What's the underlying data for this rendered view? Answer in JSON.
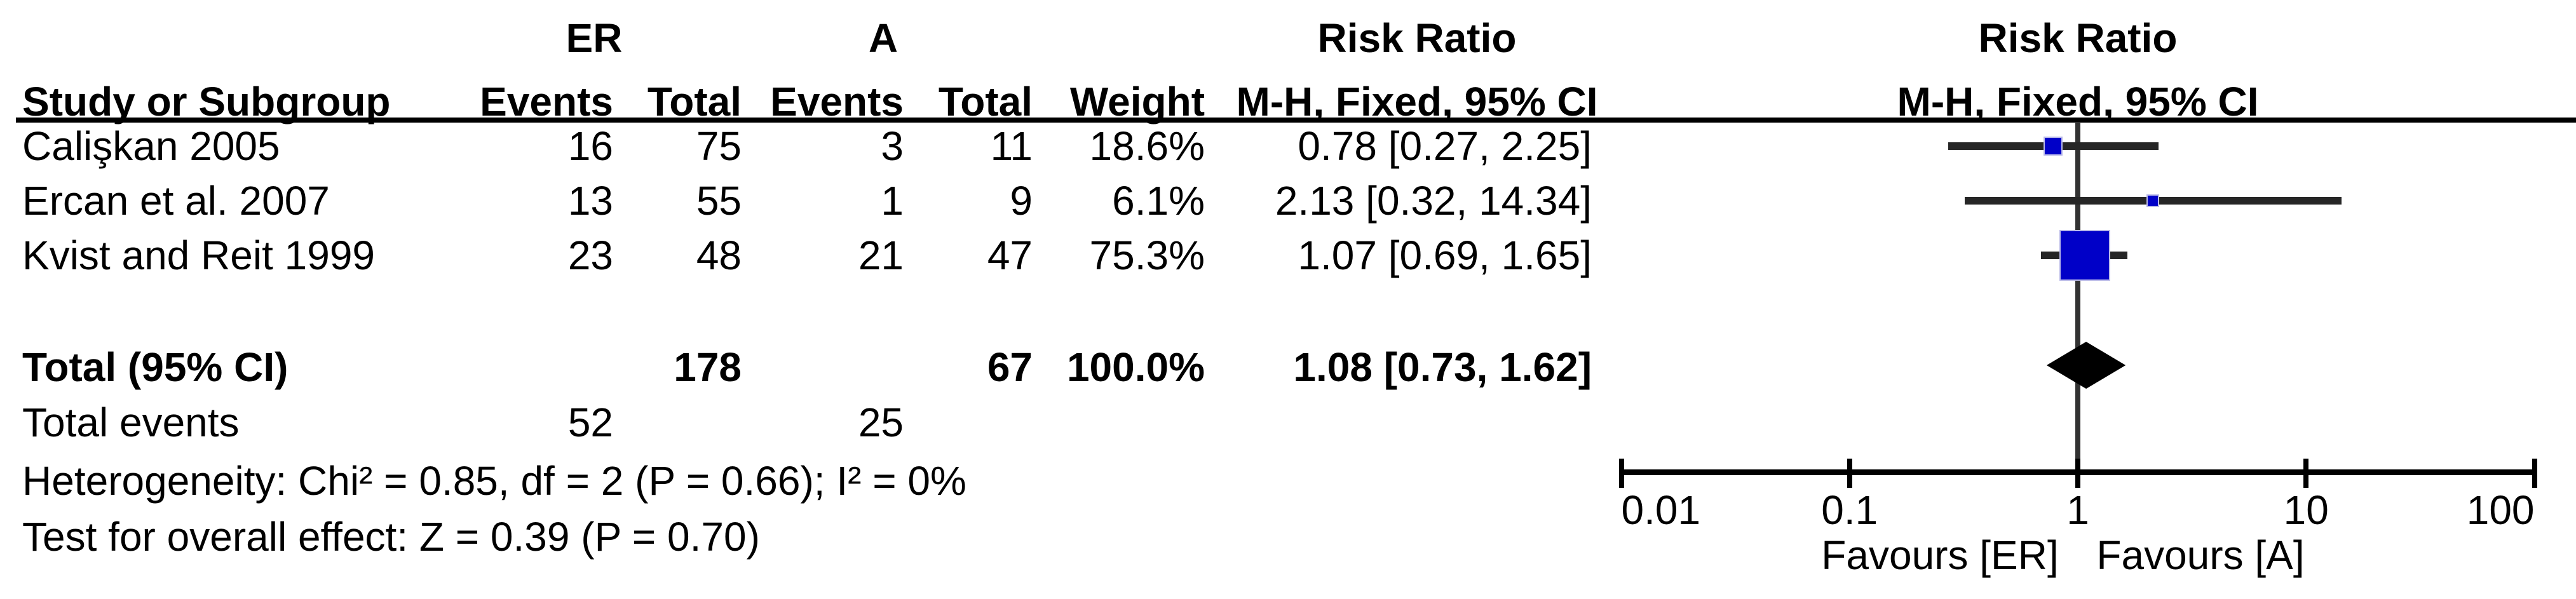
{
  "table": {
    "group1_label": "ER",
    "group2_label": "A",
    "col_study": "Study or Subgroup",
    "col_events": "Events",
    "col_total": "Total",
    "col_weight": "Weight",
    "effect_header_line1": "Risk Ratio",
    "effect_header_line2": "M-H, Fixed, 95% CI",
    "plot_header_line1": "Risk Ratio",
    "plot_header_line2": "M-H, Fixed, 95% CI",
    "studies": [
      {
        "name": "Calişkan 2005",
        "e1": "16",
        "t1": "75",
        "e2": "3",
        "t2": "11",
        "weight": "18.6%",
        "ci_text": "0.78 [0.27, 2.25]"
      },
      {
        "name": "Ercan et al. 2007",
        "e1": "13",
        "t1": "55",
        "e2": "1",
        "t2": "9",
        "weight": "6.1%",
        "ci_text": "2.13 [0.32, 14.34]"
      },
      {
        "name": "Kvist and Reit 1999",
        "e1": "23",
        "t1": "48",
        "e2": "21",
        "t2": "47",
        "weight": "75.3%",
        "ci_text": "1.07 [0.69, 1.65]"
      }
    ],
    "total_row": {
      "label": "Total (95% CI)",
      "t1": "178",
      "t2": "67",
      "weight": "100.0%",
      "ci_text": "1.08 [0.73, 1.62]"
    },
    "total_events": {
      "label": "Total events",
      "e1": "52",
      "e2": "25"
    },
    "heterogeneity": "Heterogeneity: Chi² = 0.85, df = 2 (P = 0.66); I² = 0%",
    "overall_effect": "Test for overall effect: Z = 0.39 (P = 0.70)"
  },
  "chart_data": {
    "type": "forest",
    "x_scale": "log10",
    "axis": {
      "min": 0.01,
      "max": 100,
      "ticks": [
        0.01,
        0.1,
        1,
        10,
        100
      ],
      "tick_labels": [
        "0.01",
        "0.1",
        "1",
        "10",
        "100"
      ]
    },
    "effect_measure": "Risk Ratio, M-H, Fixed, 95% CI",
    "studies": [
      {
        "name": "Calişkan 2005",
        "rr": 0.78,
        "ci": [
          0.27,
          2.25
        ],
        "weight_pct": 18.6
      },
      {
        "name": "Ercan et al. 2007",
        "rr": 2.13,
        "ci": [
          0.32,
          14.34
        ],
        "weight_pct": 6.1
      },
      {
        "name": "Kvist and Reit 1999",
        "rr": 1.07,
        "ci": [
          0.69,
          1.65
        ],
        "weight_pct": 75.3
      }
    ],
    "total": {
      "rr": 1.08,
      "ci": [
        0.73,
        1.62
      ],
      "weight_pct": 100.0
    },
    "favours_left": "Favours [ER]",
    "favours_right": "Favours [A]",
    "marker_color": "#0000C8",
    "line_color": "#262626"
  }
}
